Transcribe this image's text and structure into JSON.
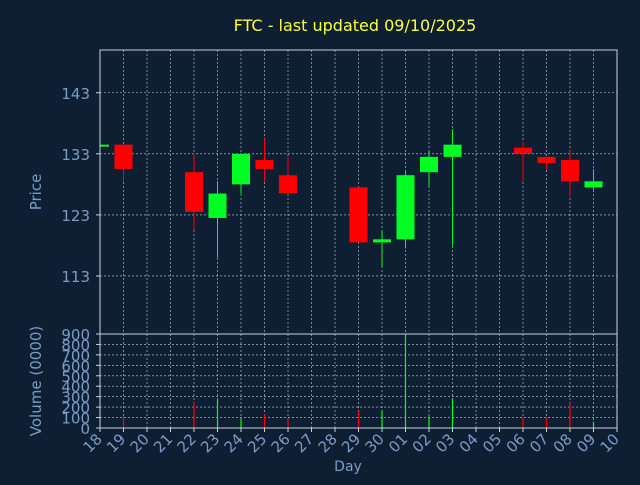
{
  "chart_data": {
    "type": "candlestick",
    "title": "FTC - last updated 09/10/2025",
    "colors": {
      "background": "#0f1f33",
      "title": "#ffff33",
      "axis_text": "#7a9cc6",
      "grid": "#c8d2de",
      "frame": "#c8d2de",
      "up": "#00ff22",
      "down": "#ff0000"
    },
    "price_panel": {
      "ylabel": "Price",
      "ylim": [
        103.5,
        150
      ],
      "yticks": [
        113,
        123,
        133,
        143
      ],
      "grid": true
    },
    "volume_panel": {
      "ylabel": "Volume (0000)",
      "ylim": [
        0,
        900
      ],
      "yticks": [
        0,
        100,
        200,
        300,
        400,
        500,
        600,
        700,
        800,
        900
      ],
      "grid": true
    },
    "xlabel": "Day",
    "x_ticks": [
      "18",
      "19",
      "20",
      "21",
      "22",
      "23",
      "24",
      "25",
      "26",
      "27",
      "28",
      "29",
      "30",
      "01",
      "02",
      "03",
      "04",
      "05",
      "06",
      "07",
      "08",
      "09",
      "10"
    ],
    "candles": [
      {
        "day": "18",
        "open": 134.5,
        "close": 134.5,
        "high": 134.5,
        "low": 134.5,
        "volume": 0
      },
      {
        "day": "19",
        "open": 134.5,
        "close": 130.5,
        "high": 134.5,
        "low": 128.5,
        "volume": 110
      },
      {
        "day": "22",
        "open": 130.0,
        "close": 123.5,
        "high": 133.0,
        "low": 120.5,
        "volume": 250
      },
      {
        "day": "23",
        "open": 122.5,
        "close": 126.5,
        "high": 128.5,
        "low": 116.0,
        "volume": 270
      },
      {
        "day": "24",
        "open": 128.0,
        "close": 133.0,
        "high": 133.0,
        "low": 126.5,
        "volume": 90
      },
      {
        "day": "25",
        "open": 132.0,
        "close": 130.5,
        "high": 135.5,
        "low": 128.5,
        "volume": 130
      },
      {
        "day": "26",
        "open": 129.5,
        "close": 126.5,
        "high": 132.5,
        "low": 126.5,
        "volume": 90
      },
      {
        "day": "29",
        "open": 127.5,
        "close": 118.5,
        "high": 127.5,
        "low": 118.5,
        "volume": 160
      },
      {
        "day": "30",
        "open": 118.5,
        "close": 119.0,
        "high": 120.5,
        "low": 114.5,
        "volume": 170
      },
      {
        "day": "01",
        "open": 119.0,
        "close": 129.5,
        "high": 130.0,
        "low": 117.5,
        "volume": 900
      },
      {
        "day": "02",
        "open": 130.0,
        "close": 132.5,
        "high": 133.5,
        "low": 127.5,
        "volume": 110
      },
      {
        "day": "03",
        "open": 132.5,
        "close": 134.5,
        "high": 137.0,
        "low": 118.0,
        "volume": 280
      },
      {
        "day": "06",
        "open": 134.0,
        "close": 133.0,
        "high": 135.0,
        "low": 128.5,
        "volume": 100
      },
      {
        "day": "07",
        "open": 132.5,
        "close": 131.5,
        "high": 132.5,
        "low": 130.5,
        "volume": 100
      },
      {
        "day": "08",
        "open": 132.0,
        "close": 128.5,
        "high": 133.5,
        "low": 126.0,
        "volume": 240
      },
      {
        "day": "09",
        "open": 127.5,
        "close": 128.5,
        "high": 130.5,
        "low": 127.0,
        "volume": 60
      }
    ]
  }
}
